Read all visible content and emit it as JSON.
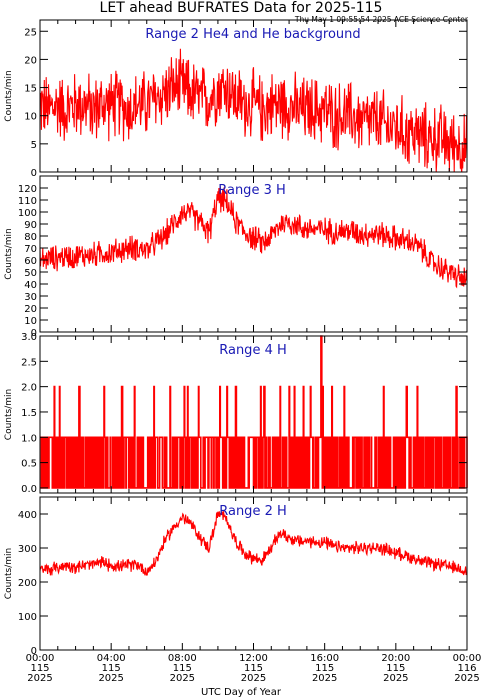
{
  "title": "LET ahead BUFRATES Data for 2025-115",
  "subtitle": "Thu May  1 09:55:54 2025 ACE Science Center",
  "xlabel": "UTC Day of Year",
  "chart_data": [
    {
      "type": "line",
      "panel_label": "Range 2 He4 and He background",
      "ylabel": "Counts/min",
      "ylim": [
        0,
        27
      ],
      "yticks": [
        0,
        5,
        10,
        15,
        20,
        25
      ],
      "color": "#ff0000",
      "x_hours": [
        0,
        0.5,
        1,
        1.5,
        2,
        2.5,
        3,
        3.5,
        4,
        4.5,
        5,
        5.5,
        6,
        6.5,
        7,
        7.5,
        8,
        8.5,
        9,
        9.5,
        10,
        10.5,
        11,
        11.5,
        12,
        12.5,
        13,
        13.5,
        14,
        14.5,
        15,
        15.5,
        16,
        16.5,
        17,
        17.5,
        18,
        18.5,
        19,
        19.5,
        20,
        20.5,
        21,
        21.5,
        22,
        22.5,
        23,
        23.5,
        24
      ],
      "values": [
        12,
        11,
        12,
        11,
        12,
        12,
        11,
        12,
        12,
        12,
        11,
        12,
        12,
        13,
        14,
        15,
        15,
        14,
        13,
        13,
        15,
        15,
        13,
        12,
        12,
        11,
        12,
        12,
        12,
        11,
        11,
        11,
        11,
        10,
        10,
        10,
        9,
        9,
        9,
        8,
        8,
        7,
        7,
        6,
        6,
        6,
        5,
        5,
        4
      ],
      "spread": 9,
      "sample": "noisy"
    },
    {
      "type": "line",
      "panel_label": "Range 3 H",
      "ylabel": "Counts/min",
      "ylim": [
        0,
        130
      ],
      "yticks": [
        0,
        10,
        20,
        30,
        40,
        50,
        60,
        70,
        80,
        90,
        100,
        110,
        120
      ],
      "color": "#ff0000",
      "x_hours": [
        0,
        0.5,
        1,
        1.5,
        2,
        2.5,
        3,
        3.5,
        4,
        4.5,
        5,
        5.5,
        6,
        6.5,
        7,
        7.5,
        8,
        8.5,
        9,
        9.5,
        10,
        10.5,
        11,
        11.5,
        12,
        12.5,
        13,
        13.5,
        14,
        14.5,
        15,
        15.5,
        16,
        16.5,
        17,
        17.5,
        18,
        18.5,
        19,
        19.5,
        20,
        20.5,
        21,
        21.5,
        22,
        22.5,
        23,
        23.5,
        24
      ],
      "values": [
        60,
        61,
        62,
        63,
        63,
        64,
        64,
        66,
        66,
        68,
        70,
        70,
        68,
        74,
        80,
        90,
        100,
        98,
        92,
        82,
        112,
        108,
        92,
        84,
        78,
        74,
        80,
        90,
        92,
        88,
        86,
        86,
        85,
        84,
        84,
        84,
        82,
        82,
        82,
        80,
        78,
        76,
        74,
        68,
        58,
        54,
        50,
        46,
        43
      ],
      "spread": 16,
      "sample": "noisy"
    },
    {
      "type": "line",
      "panel_label": "Range 4 H",
      "ylabel": "Counts/min",
      "ylim": [
        -0.1,
        3
      ],
      "yticks": [
        0.0,
        0.5,
        1.0,
        1.5,
        2.0,
        2.5,
        3.0
      ],
      "color": "#ff0000",
      "spikes_to_2_hours": [
        0.8,
        1.1,
        2.2,
        3.6,
        4.6,
        5.3,
        6.4,
        7.3,
        8.1,
        8.3,
        8.9,
        10.1,
        10.5,
        11.0,
        12.4,
        12.6,
        13.5,
        14.0,
        14.3,
        14.8,
        15.2,
        15.9,
        16.4,
        17.1,
        19.3,
        20.6,
        21.2,
        23.4
      ],
      "spikes_to_3_hours": [
        15.8
      ],
      "sample": "binary"
    },
    {
      "type": "line",
      "panel_label": "Range 2 H",
      "ylabel": "Counts/min",
      "ylim": [
        0,
        450
      ],
      "yticks": [
        0,
        100,
        200,
        300,
        400
      ],
      "color": "#ff0000",
      "x_hours": [
        0,
        0.5,
        1,
        1.5,
        2,
        2.5,
        3,
        3.5,
        4,
        4.5,
        5,
        5.5,
        6,
        6.5,
        7,
        7.5,
        8,
        8.5,
        9,
        9.5,
        10,
        10.5,
        11,
        11.5,
        12,
        12.5,
        13,
        13.5,
        14,
        14.5,
        15,
        15.5,
        16,
        16.5,
        17,
        17.5,
        18,
        18.5,
        19,
        19.5,
        20,
        20.5,
        21,
        21.5,
        22,
        22.5,
        23,
        23.5,
        24
      ],
      "values": [
        235,
        238,
        242,
        250,
        245,
        248,
        252,
        258,
        250,
        245,
        250,
        252,
        230,
        260,
        320,
        360,
        390,
        370,
        330,
        300,
        400,
        385,
        320,
        285,
        270,
        265,
        300,
        345,
        330,
        320,
        320,
        318,
        315,
        305,
        300,
        300,
        300,
        300,
        300,
        296,
        285,
        280,
        270,
        258,
        255,
        250,
        245,
        240,
        232
      ],
      "spread": 28,
      "sample": "noisy"
    }
  ],
  "x_axis": {
    "ticks": [
      {
        "time": "00:00",
        "day": "115",
        "year": "2025"
      },
      {
        "time": "04:00",
        "day": "115",
        "year": "2025"
      },
      {
        "time": "08:00",
        "day": "115",
        "year": "2025"
      },
      {
        "time": "12:00",
        "day": "115",
        "year": "2025"
      },
      {
        "time": "16:00",
        "day": "115",
        "year": "2025"
      },
      {
        "time": "20:00",
        "day": "115",
        "year": "2025"
      },
      {
        "time": "00:00",
        "day": "116",
        "year": "2025"
      }
    ],
    "range_hours": [
      0,
      24
    ]
  }
}
